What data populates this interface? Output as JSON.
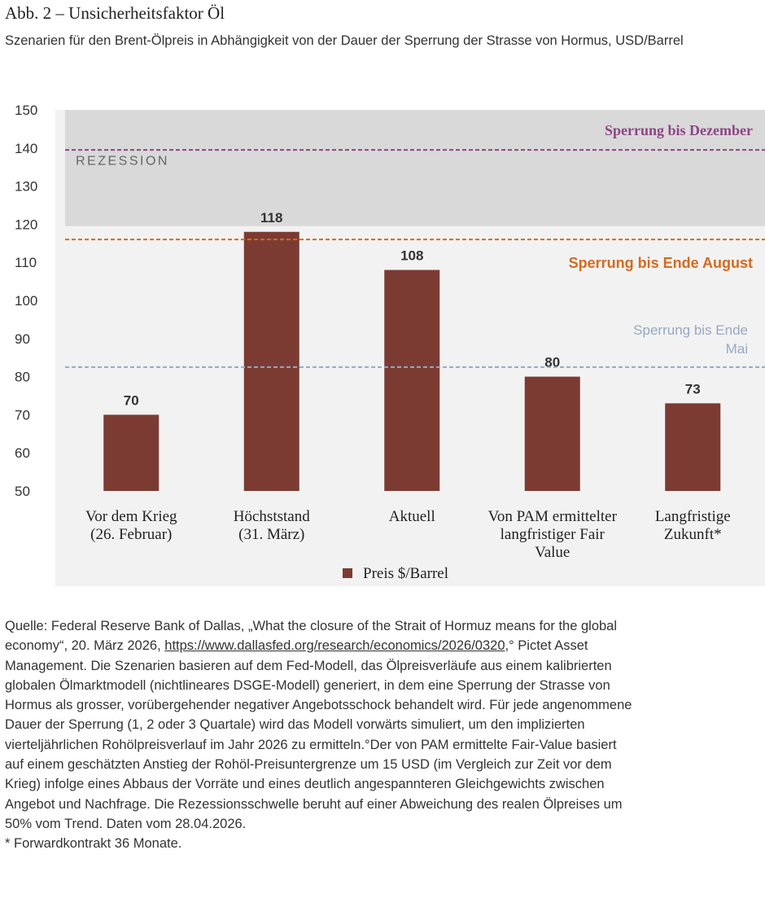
{
  "header": {
    "title": "Abb. 2 – Unsicherheitsfaktor Öl",
    "subtitle": "Szenarien für den Brent-Ölpreis in Abhängigkeit von der Dauer der Sperrung der Strasse von Hormus, USD/Barrel"
  },
  "chart_data": {
    "type": "bar",
    "categories": [
      [
        "Vor dem Krieg",
        "(26. Februar)"
      ],
      [
        "Höchststand",
        "(31. März)"
      ],
      [
        "Aktuell"
      ],
      [
        "Von PAM ermittelter",
        "langfristiger Fair",
        "Value"
      ],
      [
        "Langfristige",
        "Zukunft*"
      ]
    ],
    "series": [
      {
        "name": "Preis $/Barrel",
        "values": [
          70,
          118,
          108,
          80,
          73
        ],
        "color": "#7b3b33"
      }
    ],
    "ylim": [
      50,
      150
    ],
    "yticks": [
      50,
      60,
      70,
      80,
      90,
      100,
      110,
      120,
      130,
      140,
      150
    ],
    "legend_position": "bottom",
    "plot_background": "#f2f2f2",
    "shaded_region": {
      "label": "REZESSION",
      "from": 119.5,
      "to": 150,
      "color": "#d9d9d9"
    },
    "reference_lines": [
      {
        "label": "Sperrung bis Dezember",
        "value": 139.5,
        "color": "#8e4585"
      },
      {
        "label": "Sperrung bis Ende August",
        "value": 116,
        "color": "#d46b1f"
      },
      {
        "label": [
          "Sperrung bis Ende",
          "Mai"
        ],
        "value": 82.5,
        "color": "#97a8c4"
      }
    ]
  },
  "source": {
    "lines": [
      "Quelle: Federal Reserve Bank of Dallas, „What the closure of the Strait of Hormuz means for the global",
      "Management. Die Szenarien basieren auf dem Fed-Modell, das Ölpreisverläufe aus einem kalibrierten",
      "globalen Ölmarktmodell (nichtlineares DSGE-Modell) generiert, in dem eine Sperrung der Strasse von",
      "Hormus als grosser, vorübergehender negativer Angebotsschock behandelt wird. Für jede angenommene",
      "Dauer der Sperrung (1, 2 oder 3 Quartale) wird das Modell vorwärts simuliert, um den implizierten",
      "vierteljährlichen Rohölpreisverlauf im Jahr 2026 zu ermitteln.°Der von PAM ermittelte Fair-Value basiert",
      "auf einem geschätzten Anstieg der Rohöl-Preisuntergrenze um 15 USD (im Vergleich zur Zeit vor dem",
      "Krieg) infolge eines Abbaus der Vorräte und eines deutlich angespannteren Gleichgewichts zwischen",
      "Angebot und Nachfrage. Die Rezessionsschwelle beruht auf einer Abweichung des realen Ölpreises um",
      "50% vom Trend. Daten vom 28.04.2026.",
      "* Forwardkontrakt 36 Monate."
    ],
    "line2_prefix": "economy“, 20. März 2026, ",
    "line2_link": "https://www.dallasfed.org/research/economics/2026/0320",
    "line2_suffix": ",° Pictet Asset"
  }
}
